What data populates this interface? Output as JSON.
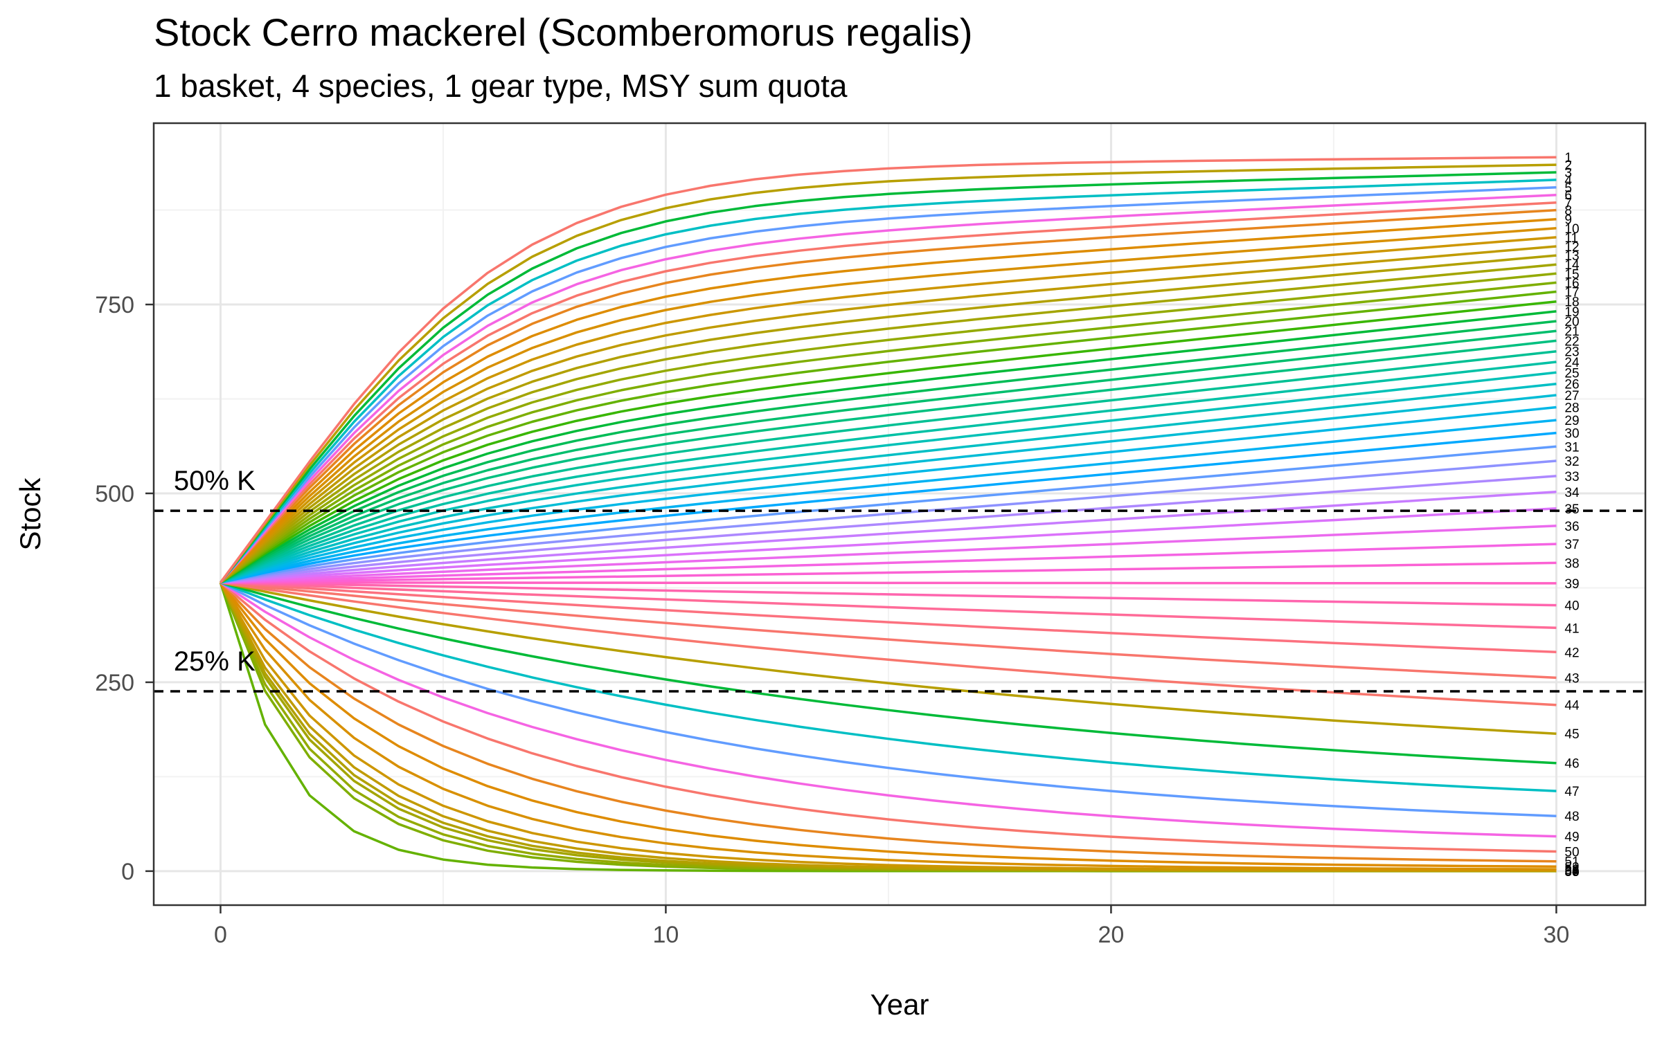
{
  "chart_data": {
    "type": "line",
    "title": "Stock Cerro mackerel (Scomberomorus regalis)",
    "subtitle": "1 basket, 4 species, 1 gear type, MSY sum quota",
    "xlabel": "Year",
    "ylabel": "Stock",
    "xlim": [
      -1.5,
      32
    ],
    "ylim": [
      -45,
      990
    ],
    "x_ticks": [
      0,
      10,
      20,
      30
    ],
    "x_tick_labels": [
      "0",
      "10",
      "20",
      "30"
    ],
    "y_ticks": [
      0,
      250,
      500,
      750
    ],
    "y_tick_labels": [
      "0",
      "250",
      "500",
      "750"
    ],
    "grid": true,
    "legend": "none",
    "n_series": 60,
    "x_start": 0,
    "x_end": 30,
    "initial_stock": 382,
    "series_final_values": [
      945,
      935,
      925,
      915,
      905,
      895,
      885,
      875,
      863,
      851,
      839,
      827,
      815,
      803,
      791,
      779,
      767,
      754,
      741,
      728,
      715,
      702,
      688,
      674,
      660,
      645,
      630,
      614,
      597,
      580,
      562,
      543,
      523,
      502,
      480,
      457,
      433,
      408,
      381,
      352,
      322,
      290,
      256,
      220,
      182,
      143,
      106,
      73,
      46,
      26,
      13,
      6,
      2.5,
      1,
      0.5,
      0.3,
      0.2,
      0.1,
      0.05,
      0
    ],
    "series_labels": [
      "1",
      "2",
      "3",
      "4",
      "5",
      "6",
      "7",
      "8",
      "9",
      "10",
      "11",
      "12",
      "13",
      "14",
      "15",
      "16",
      "17",
      "18",
      "19",
      "20",
      "21",
      "22",
      "23",
      "24",
      "25",
      "26",
      "27",
      "28",
      "29",
      "30",
      "31",
      "32",
      "33",
      "34",
      "35",
      "36",
      "37",
      "38",
      "39",
      "40",
      "41",
      "42",
      "43",
      "44",
      "45",
      "46",
      "47",
      "48",
      "49",
      "50",
      "51",
      "52",
      "53",
      "54",
      "55",
      "56",
      "57",
      "58",
      "59",
      "60"
    ],
    "series_colors": [
      "#F8766D",
      "#B79F00",
      "#00BA38",
      "#00BFC4",
      "#619CFF",
      "#F564E3",
      "#F8766D",
      "#E7851E",
      "#DE8C00",
      "#D89000",
      "#CD9600",
      "#C09B00",
      "#B1A000",
      "#A3A500",
      "#93AA00",
      "#7FAE00",
      "#64B200",
      "#39B600",
      "#00BA38",
      "#00BC56",
      "#00BE6D",
      "#00C080",
      "#00C094",
      "#00C1A5",
      "#00C1B7",
      "#00BFC4",
      "#00BCD6",
      "#00B8E7",
      "#00B2F3",
      "#00A9FF",
      "#619CFF",
      "#8E92FF",
      "#AD88FF",
      "#C77CFF",
      "#DB72FB",
      "#EB6AEE",
      "#F564E3",
      "#FB61D4",
      "#FF61C3",
      "#FF65AE",
      "#FF6B98",
      "#FC717F",
      "#F8766D"
    ],
    "reference_lines": [
      {
        "label": "50% K",
        "y": 477
      },
      {
        "label": "25% K",
        "y": 238
      }
    ]
  }
}
